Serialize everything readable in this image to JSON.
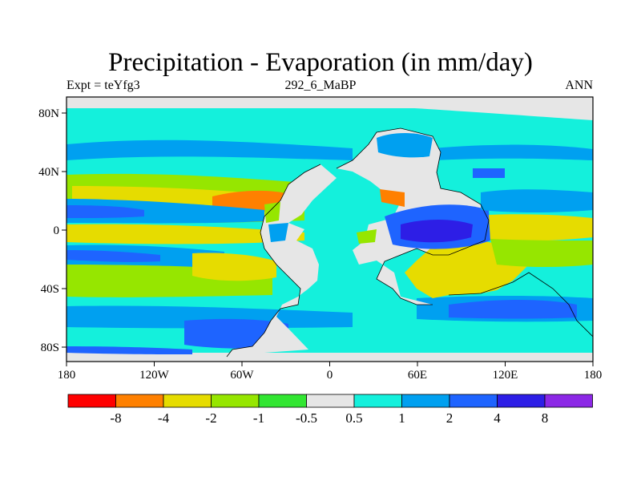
{
  "title": "Precipitation - Evaporation (in mm/day)",
  "left_string": "Expt = teYfg3",
  "center_string": "292_6_MaBP",
  "right_string": "ANN",
  "x_ticks": [
    "180",
    "120W",
    "60W",
    "0",
    "60E",
    "120E",
    "180"
  ],
  "y_ticks": [
    "80N",
    "40N",
    "0",
    "40S",
    "80S"
  ],
  "colorbar": {
    "colors": [
      "#ff0000",
      "#ff8000",
      "#e6dc00",
      "#96e600",
      "#32e632",
      "#e6e6e6",
      "#14f0dc",
      "#00a0f0",
      "#1e64ff",
      "#2d1ee6",
      "#8c28e6"
    ],
    "labels": [
      "-8",
      "-4",
      "-2",
      "-1",
      "-0.5",
      "0.5",
      "1",
      "2",
      "4",
      "8"
    ]
  },
  "colors": {
    "ocean_background": "#14f0dc",
    "land": "#e6e6e6"
  }
}
